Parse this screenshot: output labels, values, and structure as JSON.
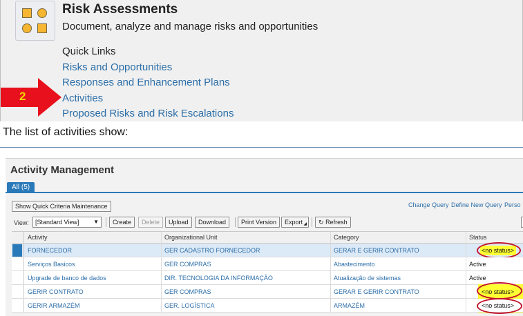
{
  "risk_assessments": {
    "title": "Risk Assessments",
    "subtitle": "Document, analyze and manage risks and opportunities",
    "quick_links_title": "Quick Links",
    "links": [
      "Risks and Opportunities",
      "Responses and Enhancement Plans",
      "Activities",
      "Proposed Risks and Risk Escalations"
    ],
    "step_number": "2"
  },
  "caption": "The list of activities show:",
  "activity_management": {
    "title": "Activity Management",
    "tab_all": "All (5)",
    "quick_criteria_button": "Show Quick Criteria Maintenance",
    "top_links": [
      "Change Query",
      "Define New Query",
      "Perso"
    ],
    "view_label": "View:",
    "view_value": "[Standard View]",
    "toolbar": {
      "create": "Create",
      "delete": "Delete",
      "upload": "Upload",
      "download": "Download",
      "print_version": "Print Version",
      "export": "Export",
      "refresh": "Refresh"
    },
    "columns": [
      "Activity",
      "Organizational Unit",
      "Category",
      "Status"
    ],
    "rows": [
      {
        "activity": "FORNECEDOR",
        "org_unit": "GER CADASTRO FORNECEDOR",
        "category": "GERAR E GERIR CONTRATO",
        "status": "<no status>"
      },
      {
        "activity": "Serviços Basicos",
        "org_unit": "GER COMPRAS",
        "category": "Abastecimento",
        "status": "Active"
      },
      {
        "activity": "Upgrade de banco de dados",
        "org_unit": "DIR. TECNOLOGIA DA INFORMAÇÃO",
        "category": "Atualização de sistemas",
        "status": "Active"
      },
      {
        "activity": "GERIR CONTRATO",
        "org_unit": "GER COMPRAS",
        "category": "GERAR E GERIR CONTRATO",
        "status": "<no status>"
      },
      {
        "activity": "GERIR ARMAZÉM",
        "org_unit": "GER. LOGÍSTICA",
        "category": "ARMAZÉM",
        "status": "<no status>"
      }
    ]
  },
  "colors": {
    "link": "#2c6ea8",
    "tab_blue": "#2a7ab9",
    "highlight_yellow": "#ffff33",
    "annotation_red": "#c4122c",
    "arrow_red": "#e8101c",
    "tile_shape_orange": "#f7b631"
  },
  "icons": {
    "app_tile": "shapes-tile-icon",
    "step_arrow": "red-arrow-icon",
    "refresh": "refresh-icon",
    "dropdown": "chevron-down-icon"
  }
}
